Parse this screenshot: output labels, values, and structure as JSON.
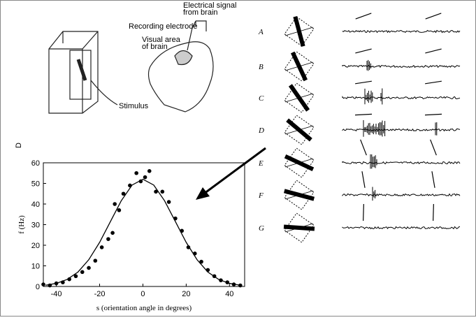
{
  "diagram": {
    "electrical_signal": [
      "Electrical signal",
      "from brain"
    ],
    "recording_electrode": "Recording electrode",
    "visual_area": [
      "Visual area",
      "of brain"
    ],
    "stimulus": "Stimulus",
    "panel_label": "D",
    "rows": [
      "A",
      "B",
      "C",
      "D",
      "E",
      "F",
      "G"
    ]
  },
  "chart_data": {
    "type": "scatter",
    "xlabel": "s (orientation angle in degrees)",
    "ylabel": "f (Hz)",
    "xlim": [
      -46,
      47
    ],
    "ylim": [
      0,
      60
    ],
    "xticks": [
      -40,
      -20,
      0,
      20,
      40
    ],
    "yticks": [
      0,
      10,
      20,
      30,
      40,
      50,
      60
    ],
    "series": [
      {
        "type": "scatter",
        "color": "#000000",
        "x": [
          -46,
          -43,
          -40,
          -37,
          -34,
          -31,
          -28,
          -25,
          -22,
          -19,
          -16,
          -14,
          -13,
          -11,
          -9,
          -6,
          -3,
          -1,
          1,
          3,
          6,
          9,
          12,
          15,
          18,
          21,
          24,
          27,
          30,
          33,
          36,
          39,
          42,
          45
        ],
        "values": [
          1,
          0.5,
          1.5,
          2,
          3.5,
          5,
          7,
          9,
          12.5,
          19,
          23,
          26,
          40,
          37,
          45,
          49,
          55,
          51,
          53,
          56,
          46,
          46,
          41,
          33,
          27,
          19,
          16,
          12,
          8,
          5,
          3,
          2,
          1,
          0.5
        ]
      },
      {
        "type": "line",
        "color": "#000000",
        "x": [
          -45,
          -40,
          -35,
          -30,
          -25,
          -20,
          -15,
          -10,
          -5,
          0,
          5,
          10,
          15,
          20,
          25,
          30,
          35,
          40,
          45
        ],
        "values": [
          0.6,
          1.5,
          3.4,
          7,
          13,
          21.4,
          31.5,
          41.6,
          49.2,
          52,
          49.2,
          41.6,
          31.5,
          21.4,
          13,
          7,
          3.4,
          1.5,
          0.6
        ]
      }
    ]
  }
}
